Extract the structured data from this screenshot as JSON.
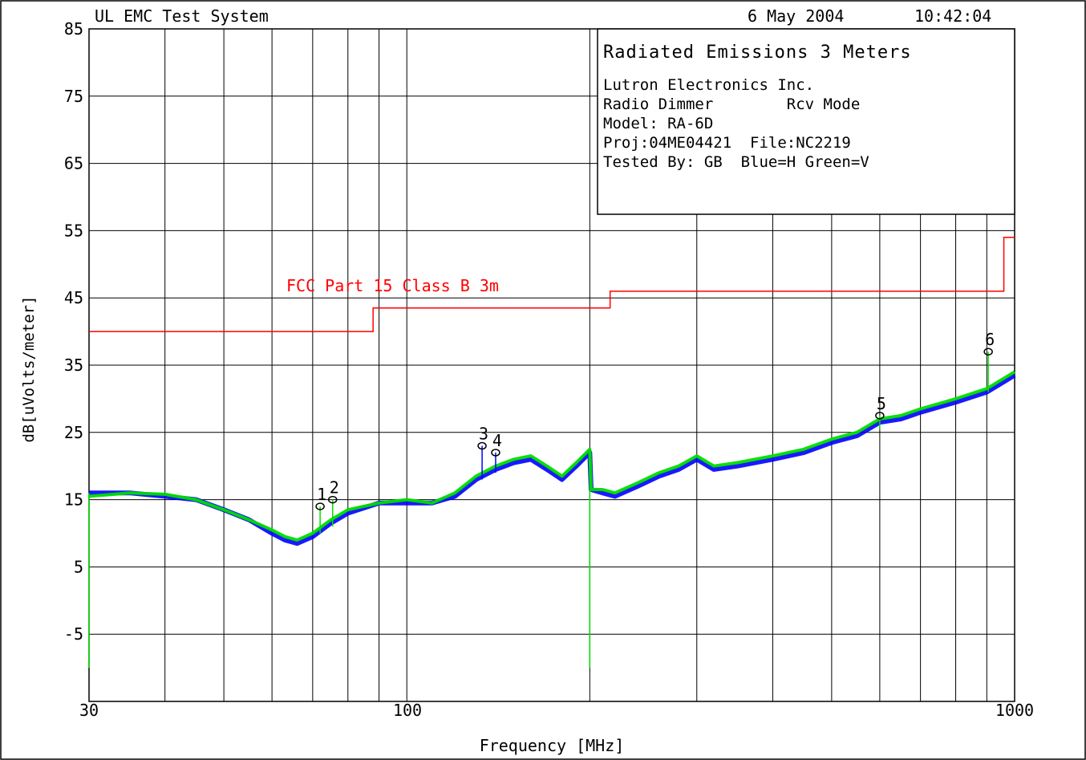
{
  "header": {
    "system_title": "UL EMC Test System",
    "date": "6 May 2004",
    "time": "10:42:04"
  },
  "info_box": {
    "title": "Radiated Emissions 3 Meters",
    "lines": [
      "Lutron Electronics Inc.",
      "Radio Dimmer        Rcv Mode",
      "Model: RA-6D",
      "Proj:04ME04421  File:NC2219",
      "Tested By: GB  Blue=H Green=V"
    ]
  },
  "chart_data": {
    "type": "line",
    "title": "",
    "xlabel": "Frequency [MHz]",
    "ylabel": "dB[uVolts/meter]",
    "x_scale": "log",
    "xlim": [
      30,
      1000
    ],
    "ylim": [
      -15,
      85
    ],
    "x_tick_labels": [
      "30",
      "100",
      "1000"
    ],
    "y_ticks": [
      85,
      75,
      65,
      55,
      45,
      35,
      25,
      15,
      5,
      -5
    ],
    "grid": true,
    "limit_line": {
      "name": "FCC Part 15 Class B 3m",
      "color": "#ff0000",
      "steps": [
        {
          "x0": 30,
          "x1": 88,
          "y": 40
        },
        {
          "x0": 88,
          "x1": 216,
          "y": 43.5
        },
        {
          "x0": 216,
          "x1": 960,
          "y": 46
        },
        {
          "x0": 960,
          "x1": 1000,
          "y": 54
        }
      ]
    },
    "series": [
      {
        "name": "Blue=H",
        "color": "#0000ff",
        "x": [
          30,
          35,
          40,
          45,
          50,
          55,
          60,
          63,
          66,
          70,
          75,
          80,
          90,
          100,
          110,
          120,
          130,
          140,
          150,
          160,
          170,
          180,
          190,
          200,
          201,
          210,
          220,
          240,
          260,
          280,
          300,
          320,
          350,
          400,
          450,
          500,
          550,
          600,
          650,
          700,
          800,
          900,
          1000
        ],
        "values": [
          16,
          16,
          15.5,
          15,
          13.5,
          12,
          10,
          9,
          8.5,
          9.5,
          11.5,
          13,
          14.5,
          14.5,
          14.5,
          15.5,
          18,
          19.5,
          20.5,
          21,
          19.5,
          18,
          20,
          22,
          16.5,
          16,
          15.5,
          17,
          18.5,
          19.5,
          21,
          19.5,
          20,
          21,
          22,
          23.5,
          24.5,
          26.5,
          27,
          28,
          29.5,
          31,
          33.5
        ]
      },
      {
        "name": "Green=V",
        "color": "#00dd00",
        "x": [
          30,
          35,
          40,
          45,
          50,
          55,
          60,
          63,
          66,
          70,
          75,
          80,
          90,
          100,
          110,
          120,
          130,
          140,
          150,
          160,
          170,
          180,
          190,
          200,
          201,
          210,
          220,
          240,
          260,
          280,
          300,
          320,
          350,
          400,
          450,
          500,
          550,
          600,
          650,
          700,
          800,
          900,
          1000
        ],
        "values": [
          15.5,
          16,
          15.8,
          15,
          13.5,
          12,
          10.5,
          9.5,
          9,
          10,
          12,
          13.5,
          14.5,
          15,
          14.5,
          16,
          18.5,
          20,
          21,
          21.5,
          20,
          18.5,
          20.5,
          22.5,
          16.5,
          16.5,
          16,
          17.5,
          19,
          20,
          21.5,
          20,
          20.5,
          21.5,
          22.5,
          24,
          25,
          27,
          27.5,
          28.5,
          30,
          31.5,
          34
        ]
      }
    ],
    "spikes": [
      {
        "x": 30,
        "y_from": 16,
        "y_to": -10,
        "color": "#00dd00"
      },
      {
        "x": 200,
        "y_from": 22,
        "y_to": -10,
        "color": "#00dd00"
      },
      {
        "x": 72,
        "y_from": 10,
        "y_to": 14,
        "color": "#00dd00"
      },
      {
        "x": 75.5,
        "y_from": 11,
        "y_to": 15,
        "color": "#00dd00"
      },
      {
        "x": 133,
        "y_from": 18,
        "y_to": 23,
        "color": "#0000ff"
      },
      {
        "x": 140,
        "y_from": 19,
        "y_to": 22,
        "color": "#0000ff"
      },
      {
        "x": 600,
        "y_from": 25.5,
        "y_to": 27.5,
        "color": "#00dd00"
      },
      {
        "x": 905,
        "y_from": 31,
        "y_to": 37,
        "color": "#00dd00"
      }
    ],
    "markers": [
      {
        "label": "1",
        "x": 72,
        "y": 14
      },
      {
        "label": "2",
        "x": 75.5,
        "y": 15
      },
      {
        "label": "3",
        "x": 133,
        "y": 23
      },
      {
        "label": "4",
        "x": 140,
        "y": 22
      },
      {
        "label": "5",
        "x": 600,
        "y": 27.5
      },
      {
        "label": "6",
        "x": 905,
        "y": 37
      }
    ]
  }
}
